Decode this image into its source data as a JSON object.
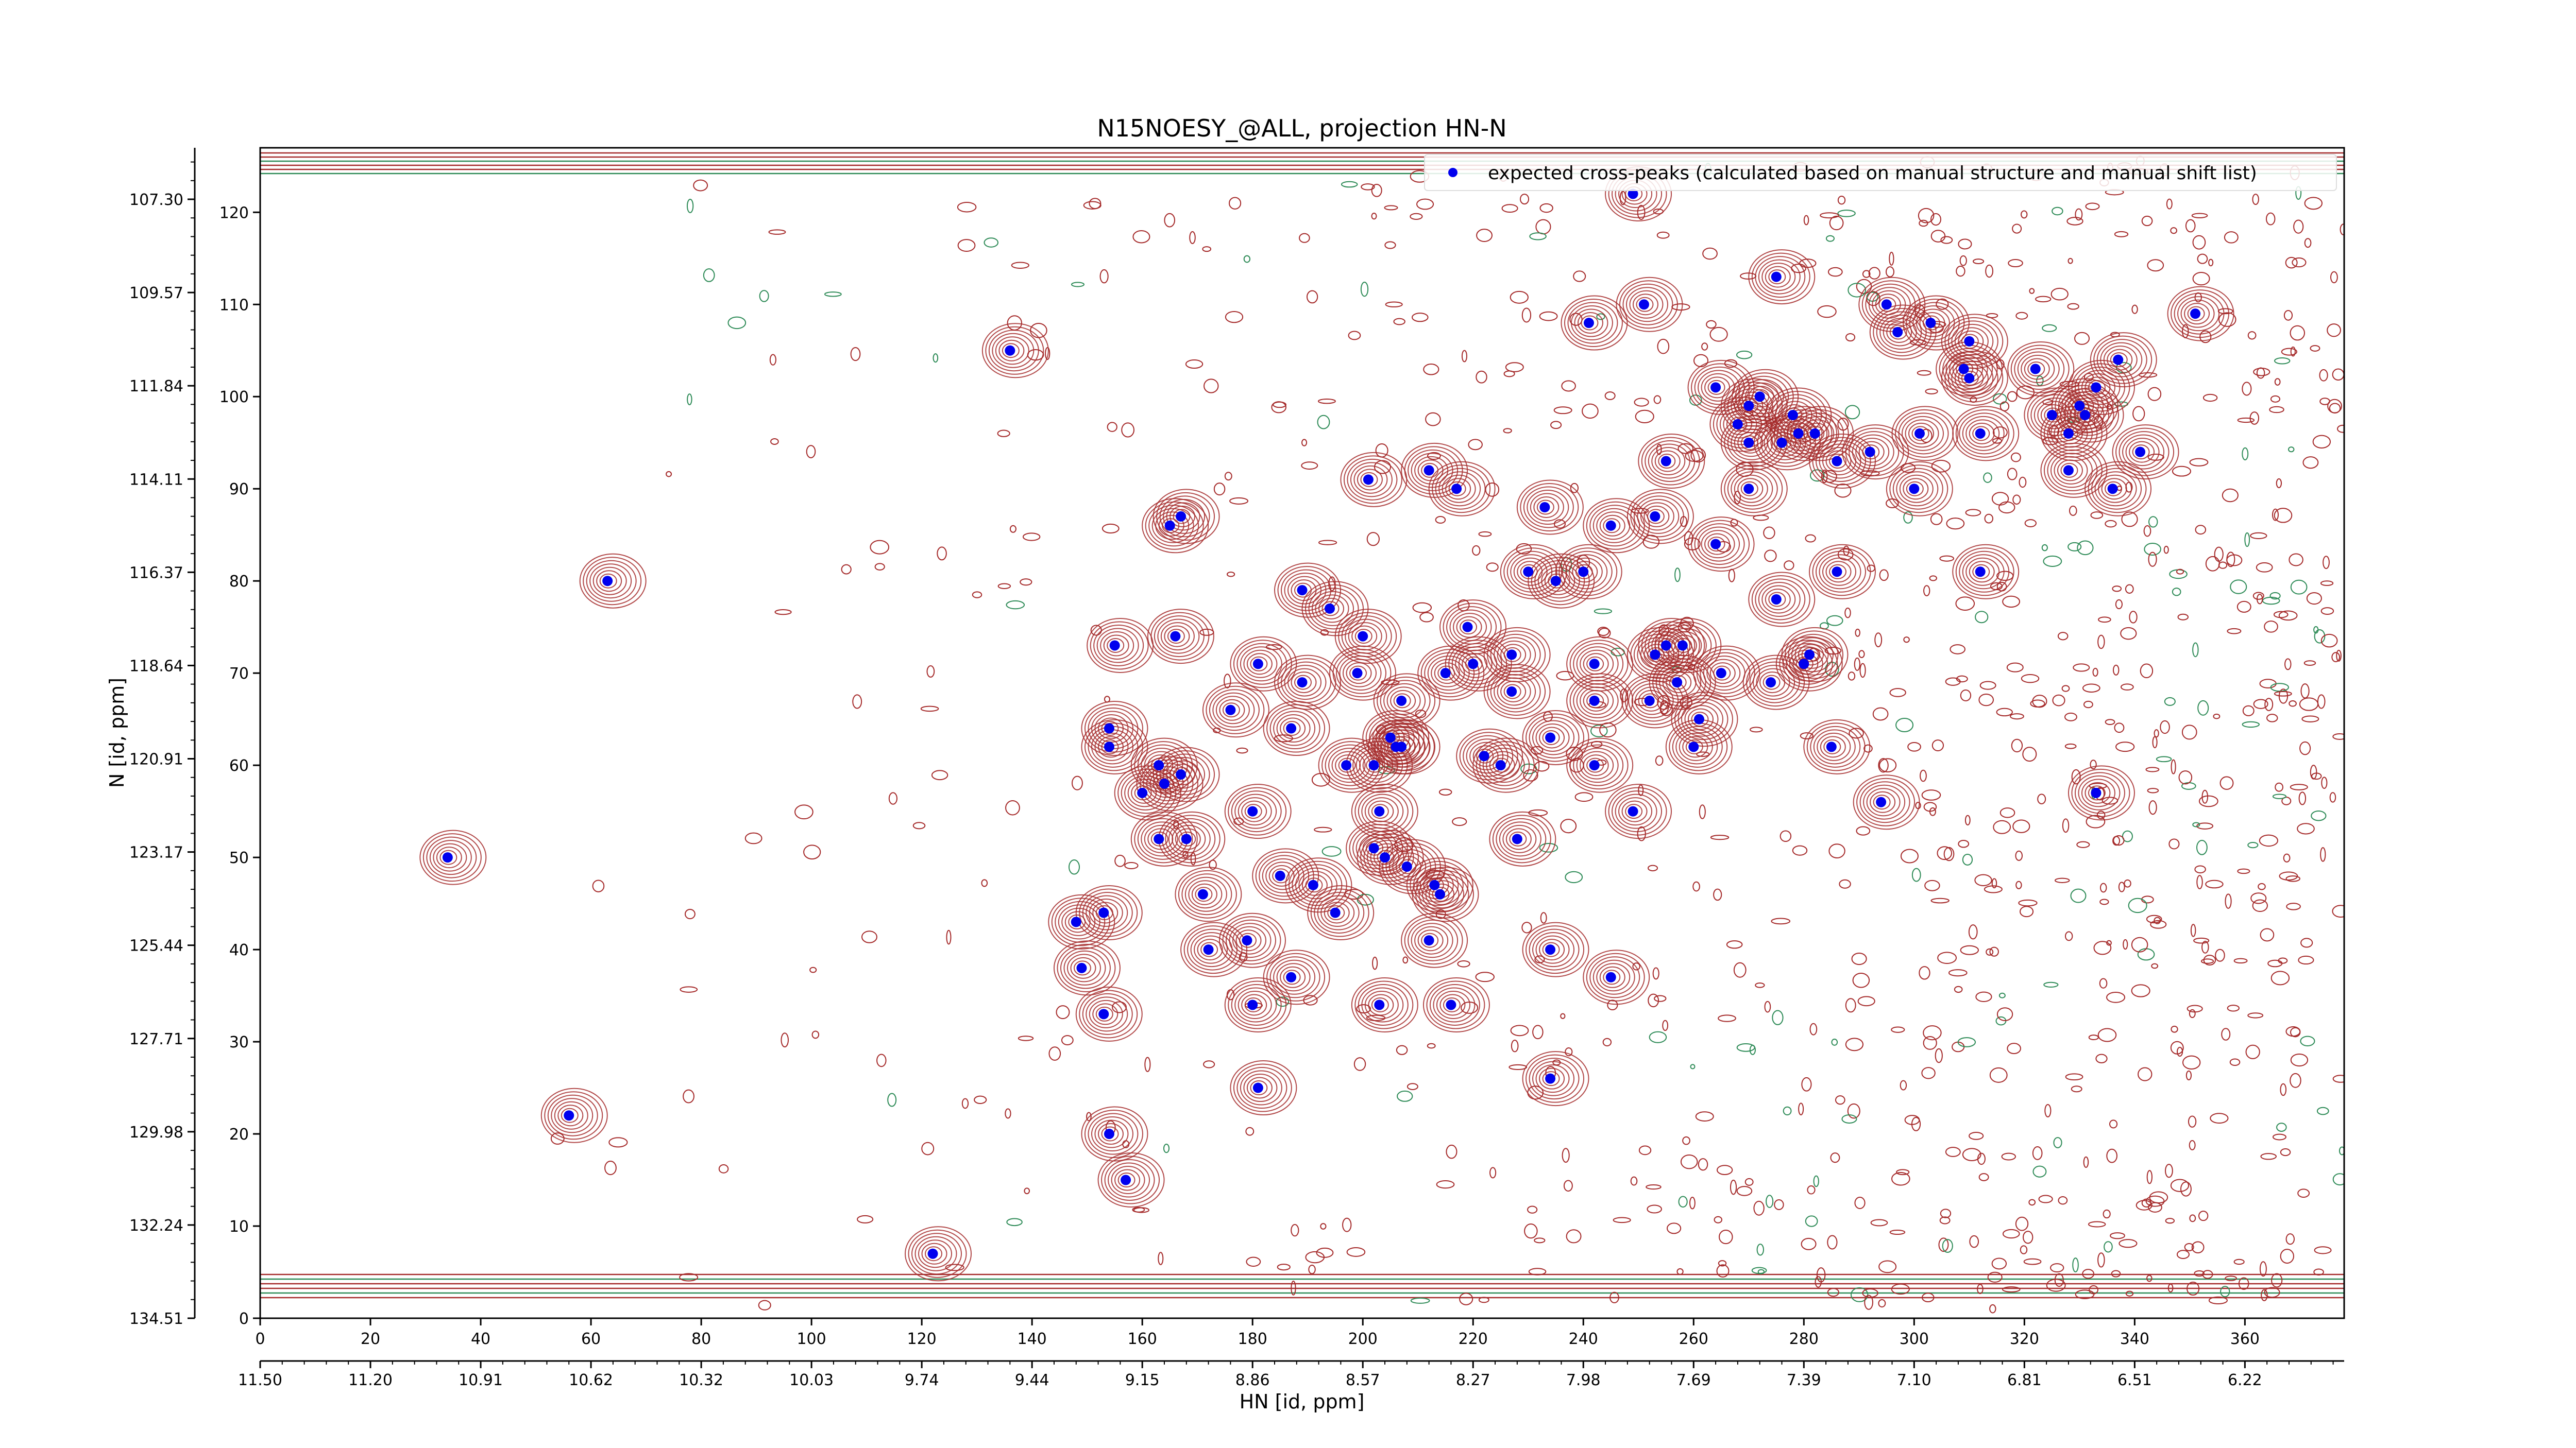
{
  "chart_data": {
    "type": "scatter",
    "title": "N15NOESY_@ALL, projection HN-N",
    "xlabel": "HN [id, ppm]",
    "ylabel": "N [id, ppm]",
    "xlim": [
      0,
      378
    ],
    "ylim": [
      0,
      127
    ],
    "x_ticks": [
      0,
      20,
      40,
      60,
      80,
      100,
      120,
      140,
      160,
      180,
      200,
      220,
      240,
      260,
      280,
      300,
      320,
      340,
      360
    ],
    "y_ticks": [
      0,
      10,
      20,
      30,
      40,
      50,
      60,
      70,
      80,
      90,
      100,
      110,
      120
    ],
    "secondary_x_labels": [
      "11.50",
      "11.20",
      "10.91",
      "10.62",
      "10.32",
      "10.03",
      "9.74",
      "9.44",
      "9.15",
      "8.86",
      "8.57",
      "8.27",
      "7.98",
      "7.69",
      "7.39",
      "7.10",
      "6.81",
      "6.51",
      "6.22"
    ],
    "secondary_y_labels": [
      "134.51",
      "132.24",
      "129.98",
      "127.71",
      "125.44",
      "123.17",
      "120.91",
      "118.64",
      "116.37",
      "114.11",
      "111.84",
      "109.57",
      "107.30"
    ],
    "legend": {
      "placement": "top-right",
      "entries": [
        "expected cross-peaks (calculated based on manual structure and manual shift list)"
      ]
    },
    "colors": {
      "marker": "#0000ee",
      "contour_positive": "#a52a2a",
      "contour_negative": "#2e8b57"
    },
    "grid": false,
    "series": [
      {
        "name": "expected cross-peaks (calculated based on manual structure and manual shift list)",
        "points": [
          [
            34,
            50
          ],
          [
            56,
            22
          ],
          [
            63,
            80
          ],
          [
            122,
            7
          ],
          [
            136,
            105
          ],
          [
            155,
            73
          ],
          [
            154,
            62
          ],
          [
            154,
            64
          ],
          [
            153,
            44
          ],
          [
            154,
            20
          ],
          [
            157,
            15
          ],
          [
            148,
            43
          ],
          [
            149,
            38
          ],
          [
            153,
            33
          ],
          [
            160,
            57
          ],
          [
            163,
            52
          ],
          [
            168,
            52
          ],
          [
            163,
            60
          ],
          [
            164,
            58
          ],
          [
            167,
            59
          ],
          [
            166,
            74
          ],
          [
            165,
            86
          ],
          [
            167,
            87
          ],
          [
            171,
            46
          ],
          [
            172,
            40
          ],
          [
            176,
            66
          ],
          [
            179,
            41
          ],
          [
            180,
            34
          ],
          [
            180,
            55
          ],
          [
            181,
            25
          ],
          [
            181,
            71
          ],
          [
            185,
            48
          ],
          [
            187,
            37
          ],
          [
            187,
            64
          ],
          [
            189,
            69
          ],
          [
            189,
            79
          ],
          [
            191,
            47
          ],
          [
            194,
            77
          ],
          [
            195,
            44
          ],
          [
            197,
            60
          ],
          [
            199,
            70
          ],
          [
            200,
            74
          ],
          [
            201,
            91
          ],
          [
            202,
            51
          ],
          [
            202,
            60
          ],
          [
            203,
            34
          ],
          [
            203,
            55
          ],
          [
            204,
            50
          ],
          [
            205,
            63
          ],
          [
            206,
            62
          ],
          [
            207,
            62
          ],
          [
            207,
            67
          ],
          [
            208,
            49
          ],
          [
            212,
            92
          ],
          [
            212,
            41
          ],
          [
            213,
            47
          ],
          [
            214,
            46
          ],
          [
            215,
            70
          ],
          [
            216,
            34
          ],
          [
            217,
            90
          ],
          [
            219,
            75
          ],
          [
            220,
            71
          ],
          [
            222,
            61
          ],
          [
            225,
            60
          ],
          [
            227,
            68
          ],
          [
            227,
            72
          ],
          [
            228,
            52
          ],
          [
            230,
            81
          ],
          [
            233,
            88
          ],
          [
            234,
            26
          ],
          [
            234,
            40
          ],
          [
            234,
            63
          ],
          [
            235,
            80
          ],
          [
            240,
            81
          ],
          [
            241,
            108
          ],
          [
            242,
            60
          ],
          [
            242,
            67
          ],
          [
            242,
            71
          ],
          [
            245,
            37
          ],
          [
            245,
            86
          ],
          [
            249,
            55
          ],
          [
            249,
            122
          ],
          [
            251,
            110
          ],
          [
            252,
            67
          ],
          [
            253,
            72
          ],
          [
            253,
            87
          ],
          [
            255,
            73
          ],
          [
            255,
            93
          ],
          [
            257,
            69
          ],
          [
            258,
            73
          ],
          [
            260,
            62
          ],
          [
            261,
            65
          ],
          [
            264,
            84
          ],
          [
            264,
            101
          ],
          [
            265,
            70
          ],
          [
            268,
            97
          ],
          [
            270,
            95
          ],
          [
            270,
            90
          ],
          [
            270,
            99
          ],
          [
            272,
            100
          ],
          [
            274,
            69
          ],
          [
            275,
            78
          ],
          [
            275,
            113
          ],
          [
            276,
            95
          ],
          [
            278,
            98
          ],
          [
            279,
            96
          ],
          [
            280,
            71
          ],
          [
            281,
            72
          ],
          [
            282,
            96
          ],
          [
            286,
            81
          ],
          [
            286,
            93
          ],
          [
            285,
            62
          ],
          [
            292,
            94
          ],
          [
            294,
            56
          ],
          [
            295,
            110
          ],
          [
            297,
            107
          ],
          [
            300,
            90
          ],
          [
            301,
            96
          ],
          [
            303,
            108
          ],
          [
            309,
            103
          ],
          [
            310,
            106
          ],
          [
            310,
            102
          ],
          [
            312,
            81
          ],
          [
            312,
            96
          ],
          [
            322,
            103
          ],
          [
            325,
            98
          ],
          [
            328,
            92
          ],
          [
            328,
            96
          ],
          [
            330,
            99
          ],
          [
            331,
            98
          ],
          [
            333,
            101
          ],
          [
            333,
            57
          ],
          [
            336,
            90
          ],
          [
            337,
            104
          ],
          [
            341,
            94
          ],
          [
            351,
            109
          ]
        ]
      }
    ]
  }
}
